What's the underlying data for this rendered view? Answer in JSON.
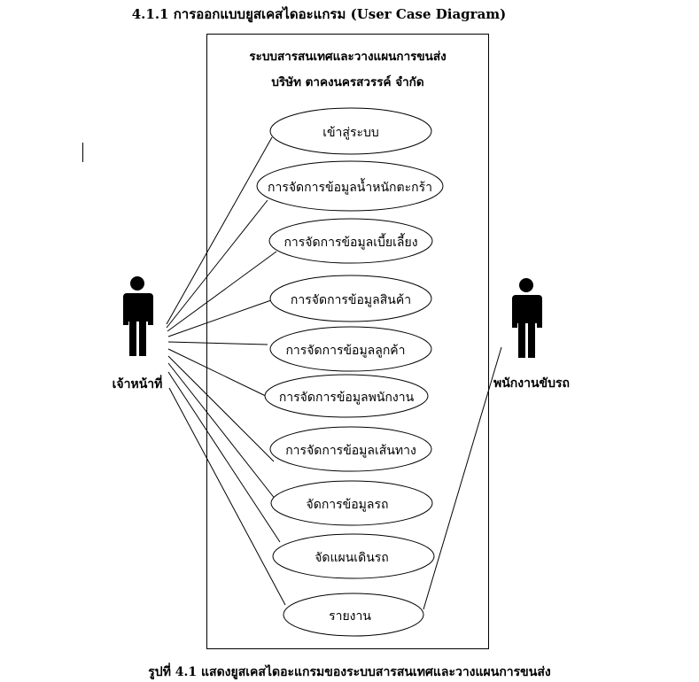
{
  "heading": "4.1.1 การออกแบบยูสเคสไดอะแกรม (User Case Diagram)",
  "system": {
    "title_line1": "ระบบสารสนเทศและวางแผนการขนส่ง",
    "title_line2": "บริษัท ตาคงนครสวรรค์ จำกัด"
  },
  "actors": {
    "left": "เจ้าหน้าที่",
    "right": "พนักงานขับรถ"
  },
  "use_cases": [
    "เข้าสู่ระบบ",
    "การจัดการข้อมูลน้ำหนักตะกร้า",
    "การจัดการข้อมูลเบี้ยเลี้ยง",
    "การจัดการข้อมูลสินค้า",
    "การจัดการข้อมูลลูกค้า",
    "การจัดการข้อมูลพนักงาน",
    "การจัดการข้อมูลเส้นทาง",
    "จัดการข้อมูลรถ",
    "จัดแผนเดินรถ",
    "รายงาน"
  ],
  "caption": "รูปที่ 4.1 แสดงยูสเคสไดอะแกรมของระบบสารสนเทศและวางแผนการขนส่ง"
}
